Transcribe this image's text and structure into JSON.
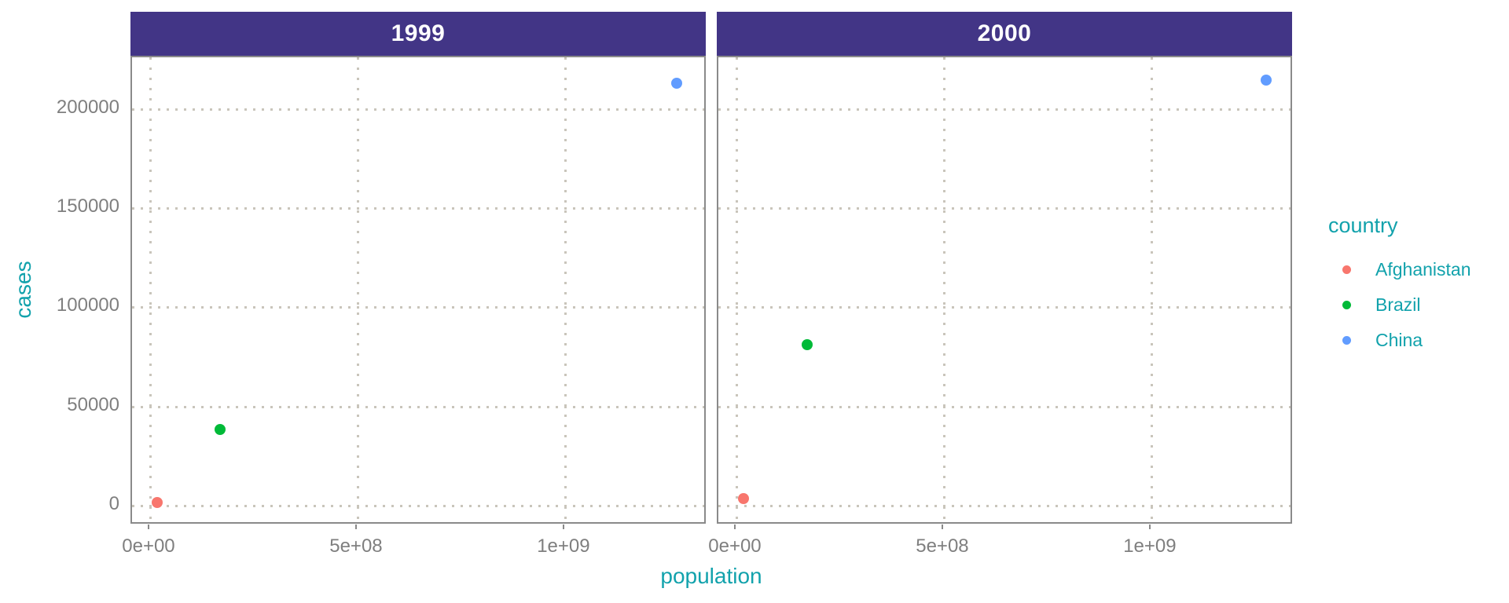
{
  "chart_data": {
    "type": "scatter",
    "faceting_variable": "year",
    "facets": [
      {
        "label": "1999"
      },
      {
        "label": "2000"
      }
    ],
    "x": {
      "label": "population",
      "lim": [
        -43500000,
        1343000000
      ],
      "ticks": [
        {
          "value": 0,
          "label": "0e+00"
        },
        {
          "value": 500000000,
          "label": "5e+08"
        },
        {
          "value": 1000000000,
          "label": "1e+09"
        }
      ]
    },
    "y": {
      "label": "cases",
      "lim": [
        -9900,
        226100
      ],
      "ticks": [
        {
          "value": 0,
          "label": "0"
        },
        {
          "value": 50000,
          "label": "50000"
        },
        {
          "value": 100000,
          "label": "100000"
        },
        {
          "value": 150000,
          "label": "150000"
        },
        {
          "value": 200000,
          "label": "200000"
        }
      ]
    },
    "legend": {
      "title": "country",
      "position": "right"
    },
    "grid": {
      "style": "dotted",
      "major_only": true
    },
    "series": [
      {
        "name": "Afghanistan",
        "color": "#F8766D",
        "points": [
          {
            "facet": "1999",
            "population": 19987071,
            "cases": 745
          },
          {
            "facet": "2000",
            "population": 20595360,
            "cases": 2666
          }
        ]
      },
      {
        "name": "Brazil",
        "color": "#00BA38",
        "points": [
          {
            "facet": "1999",
            "population": 172006362,
            "cases": 37737
          },
          {
            "facet": "2000",
            "population": 174504898,
            "cases": 80488
          }
        ]
      },
      {
        "name": "China",
        "color": "#619CFF",
        "points": [
          {
            "facet": "1999",
            "population": 1272915272,
            "cases": 212258
          },
          {
            "facet": "2000",
            "population": 1280428583,
            "cases": 213766
          }
        ]
      }
    ],
    "colors": {
      "strip_background": "#423586",
      "strip_text": "#ffffff",
      "axis_title_text": "#12a2ac",
      "tick_label_text": "#7f7f7f",
      "panel_border": "#8a8a8a",
      "gridline": "#c9c5bb"
    }
  }
}
